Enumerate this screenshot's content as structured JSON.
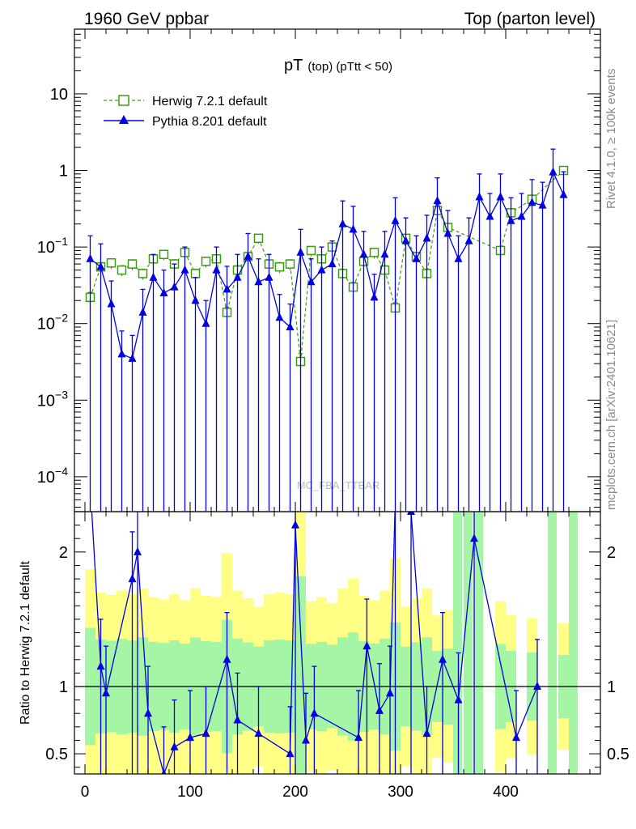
{
  "header": {
    "left": "1960 GeV ppbar",
    "right": "Top (parton level)"
  },
  "side_labels": {
    "rivet": "Rivet 4.1.0, ≥ 100k events",
    "mcplots": "mcplots.cern.ch [arXiv:2401.10621]"
  },
  "watermark": "MC_FBA_TTBAR",
  "chart_data": {
    "type": "line",
    "title_main": "pT",
    "title_sub": "(top) (pTtt < 50)",
    "xlabel": "",
    "ylabel": "",
    "xlim": [
      -10,
      490
    ],
    "ylim": [
      3.5e-05,
      70
    ],
    "yscale": "log",
    "x_ticks": [
      0,
      100,
      200,
      300,
      400
    ],
    "y_ticks": [
      {
        "value": 0.0001,
        "mant": "10",
        "exp": "−4"
      },
      {
        "value": 0.001,
        "mant": "10",
        "exp": "−3"
      },
      {
        "value": 0.01,
        "mant": "10",
        "exp": "−2"
      },
      {
        "value": 0.1,
        "mant": "10",
        "exp": "−1"
      },
      {
        "value": 1,
        "mant": "1",
        "exp": ""
      },
      {
        "value": 10,
        "mant": "10",
        "exp": ""
      }
    ],
    "legend": [
      {
        "name": "Herwig 7.2.1 default",
        "color": "#3f9a12",
        "marker": "open-square",
        "style": "dashed"
      },
      {
        "name": "Pythia 8.201 default",
        "color": "#0000e0",
        "marker": "filled-triangle",
        "style": "solid"
      }
    ],
    "herwig_points": [
      {
        "x": 5,
        "y": 0.022
      },
      {
        "x": 15,
        "y": 0.055
      },
      {
        "x": 25,
        "y": 0.062
      },
      {
        "x": 35,
        "y": 0.05
      },
      {
        "x": 45,
        "y": 0.06
      },
      {
        "x": 55,
        "y": 0.045
      },
      {
        "x": 65,
        "y": 0.07
      },
      {
        "x": 75,
        "y": 0.08
      },
      {
        "x": 85,
        "y": 0.06
      },
      {
        "x": 95,
        "y": 0.085
      },
      {
        "x": 105,
        "y": 0.045
      },
      {
        "x": 115,
        "y": 0.065
      },
      {
        "x": 125,
        "y": 0.07
      },
      {
        "x": 135,
        "y": 0.014
      },
      {
        "x": 145,
        "y": 0.05
      },
      {
        "x": 155,
        "y": 0.075
      },
      {
        "x": 165,
        "y": 0.13
      },
      {
        "x": 175,
        "y": 0.06
      },
      {
        "x": 185,
        "y": 0.055
      },
      {
        "x": 195,
        "y": 0.06
      },
      {
        "x": 205,
        "y": 0.0032
      },
      {
        "x": 215,
        "y": 0.09
      },
      {
        "x": 225,
        "y": 0.07
      },
      {
        "x": 235,
        "y": 0.1
      },
      {
        "x": 245,
        "y": 0.045
      },
      {
        "x": 255,
        "y": 0.03
      },
      {
        "x": 265,
        "y": 0.065
      },
      {
        "x": 275,
        "y": 0.085
      },
      {
        "x": 285,
        "y": 0.05
      },
      {
        "x": 295,
        "y": 0.016
      },
      {
        "x": 305,
        "y": 0.13
      },
      {
        "x": 315,
        "y": 0.075
      },
      {
        "x": 325,
        "y": 0.045
      },
      {
        "x": 335,
        "y": 0.3
      },
      {
        "x": 345,
        "y": 0.18
      },
      {
        "x": 395,
        "y": 0.09
      },
      {
        "x": 405,
        "y": 0.28
      },
      {
        "x": 425,
        "y": 0.42
      },
      {
        "x": 455,
        "y": 1.0
      }
    ],
    "pythia_points": [
      {
        "x": 5,
        "y": 0.07
      },
      {
        "x": 15,
        "y": 0.055
      },
      {
        "x": 25,
        "y": 0.018
      },
      {
        "x": 35,
        "y": 0.004
      },
      {
        "x": 45,
        "y": 0.0035
      },
      {
        "x": 55,
        "y": 0.014
      },
      {
        "x": 65,
        "y": 0.04
      },
      {
        "x": 75,
        "y": 0.025
      },
      {
        "x": 85,
        "y": 0.03
      },
      {
        "x": 95,
        "y": 0.05
      },
      {
        "x": 105,
        "y": 0.02
      },
      {
        "x": 115,
        "y": 0.01
      },
      {
        "x": 125,
        "y": 0.05
      },
      {
        "x": 135,
        "y": 0.028
      },
      {
        "x": 145,
        "y": 0.04
      },
      {
        "x": 155,
        "y": 0.075
      },
      {
        "x": 165,
        "y": 0.035
      },
      {
        "x": 175,
        "y": 0.04
      },
      {
        "x": 185,
        "y": 0.012
      },
      {
        "x": 195,
        "y": 0.009
      },
      {
        "x": 205,
        "y": 0.085
      },
      {
        "x": 215,
        "y": 0.035
      },
      {
        "x": 225,
        "y": 0.05
      },
      {
        "x": 235,
        "y": 0.06
      },
      {
        "x": 245,
        "y": 0.2
      },
      {
        "x": 255,
        "y": 0.17
      },
      {
        "x": 265,
        "y": 0.08
      },
      {
        "x": 275,
        "y": 0.022
      },
      {
        "x": 285,
        "y": 0.08
      },
      {
        "x": 295,
        "y": 0.22
      },
      {
        "x": 305,
        "y": 0.12
      },
      {
        "x": 315,
        "y": 0.07
      },
      {
        "x": 325,
        "y": 0.13
      },
      {
        "x": 335,
        "y": 0.4
      },
      {
        "x": 345,
        "y": 0.15
      },
      {
        "x": 355,
        "y": 0.07
      },
      {
        "x": 365,
        "y": 0.12
      },
      {
        "x": 375,
        "y": 0.45
      },
      {
        "x": 385,
        "y": 0.25
      },
      {
        "x": 395,
        "y": 0.45
      },
      {
        "x": 405,
        "y": 0.22
      },
      {
        "x": 415,
        "y": 0.25
      },
      {
        "x": 425,
        "y": 0.38
      },
      {
        "x": 435,
        "y": 0.35
      },
      {
        "x": 445,
        "y": 0.95
      },
      {
        "x": 455,
        "y": 0.48
      }
    ],
    "ratio": {
      "ylabel": "Ratio to Herwig 7.2.1 default",
      "ylim": [
        0.35,
        2.3
      ],
      "y_ticks": [
        {
          "value": 0.5,
          "label": "0.5"
        },
        {
          "value": 1,
          "label": "1"
        },
        {
          "value": 2,
          "label": "2"
        }
      ],
      "points": [
        {
          "x": 15,
          "y": 1.15
        },
        {
          "x": 20,
          "y": 0.95
        },
        {
          "x": 45,
          "y": 1.8
        },
        {
          "x": 50,
          "y": 2.0
        },
        {
          "x": 60,
          "y": 0.8
        },
        {
          "x": 75,
          "y": 0.35
        },
        {
          "x": 85,
          "y": 0.55
        },
        {
          "x": 100,
          "y": 0.62
        },
        {
          "x": 115,
          "y": 0.65
        },
        {
          "x": 135,
          "y": 1.2
        },
        {
          "x": 145,
          "y": 0.75
        },
        {
          "x": 165,
          "y": 0.65
        },
        {
          "x": 195,
          "y": 0.5
        },
        {
          "x": 200,
          "y": 2.2
        },
        {
          "x": 210,
          "y": 0.6
        },
        {
          "x": 218,
          "y": 0.8
        },
        {
          "x": 260,
          "y": 0.62
        },
        {
          "x": 268,
          "y": 1.3
        },
        {
          "x": 280,
          "y": 0.82
        },
        {
          "x": 290,
          "y": 0.95
        },
        {
          "x": 295,
          "y": 2.4
        },
        {
          "x": 310,
          "y": 2.3
        },
        {
          "x": 325,
          "y": 0.65
        },
        {
          "x": 340,
          "y": 1.2
        },
        {
          "x": 355,
          "y": 0.9
        },
        {
          "x": 370,
          "y": 2.1
        },
        {
          "x": 410,
          "y": 0.62
        },
        {
          "x": 430,
          "y": 1.0
        }
      ]
    }
  }
}
